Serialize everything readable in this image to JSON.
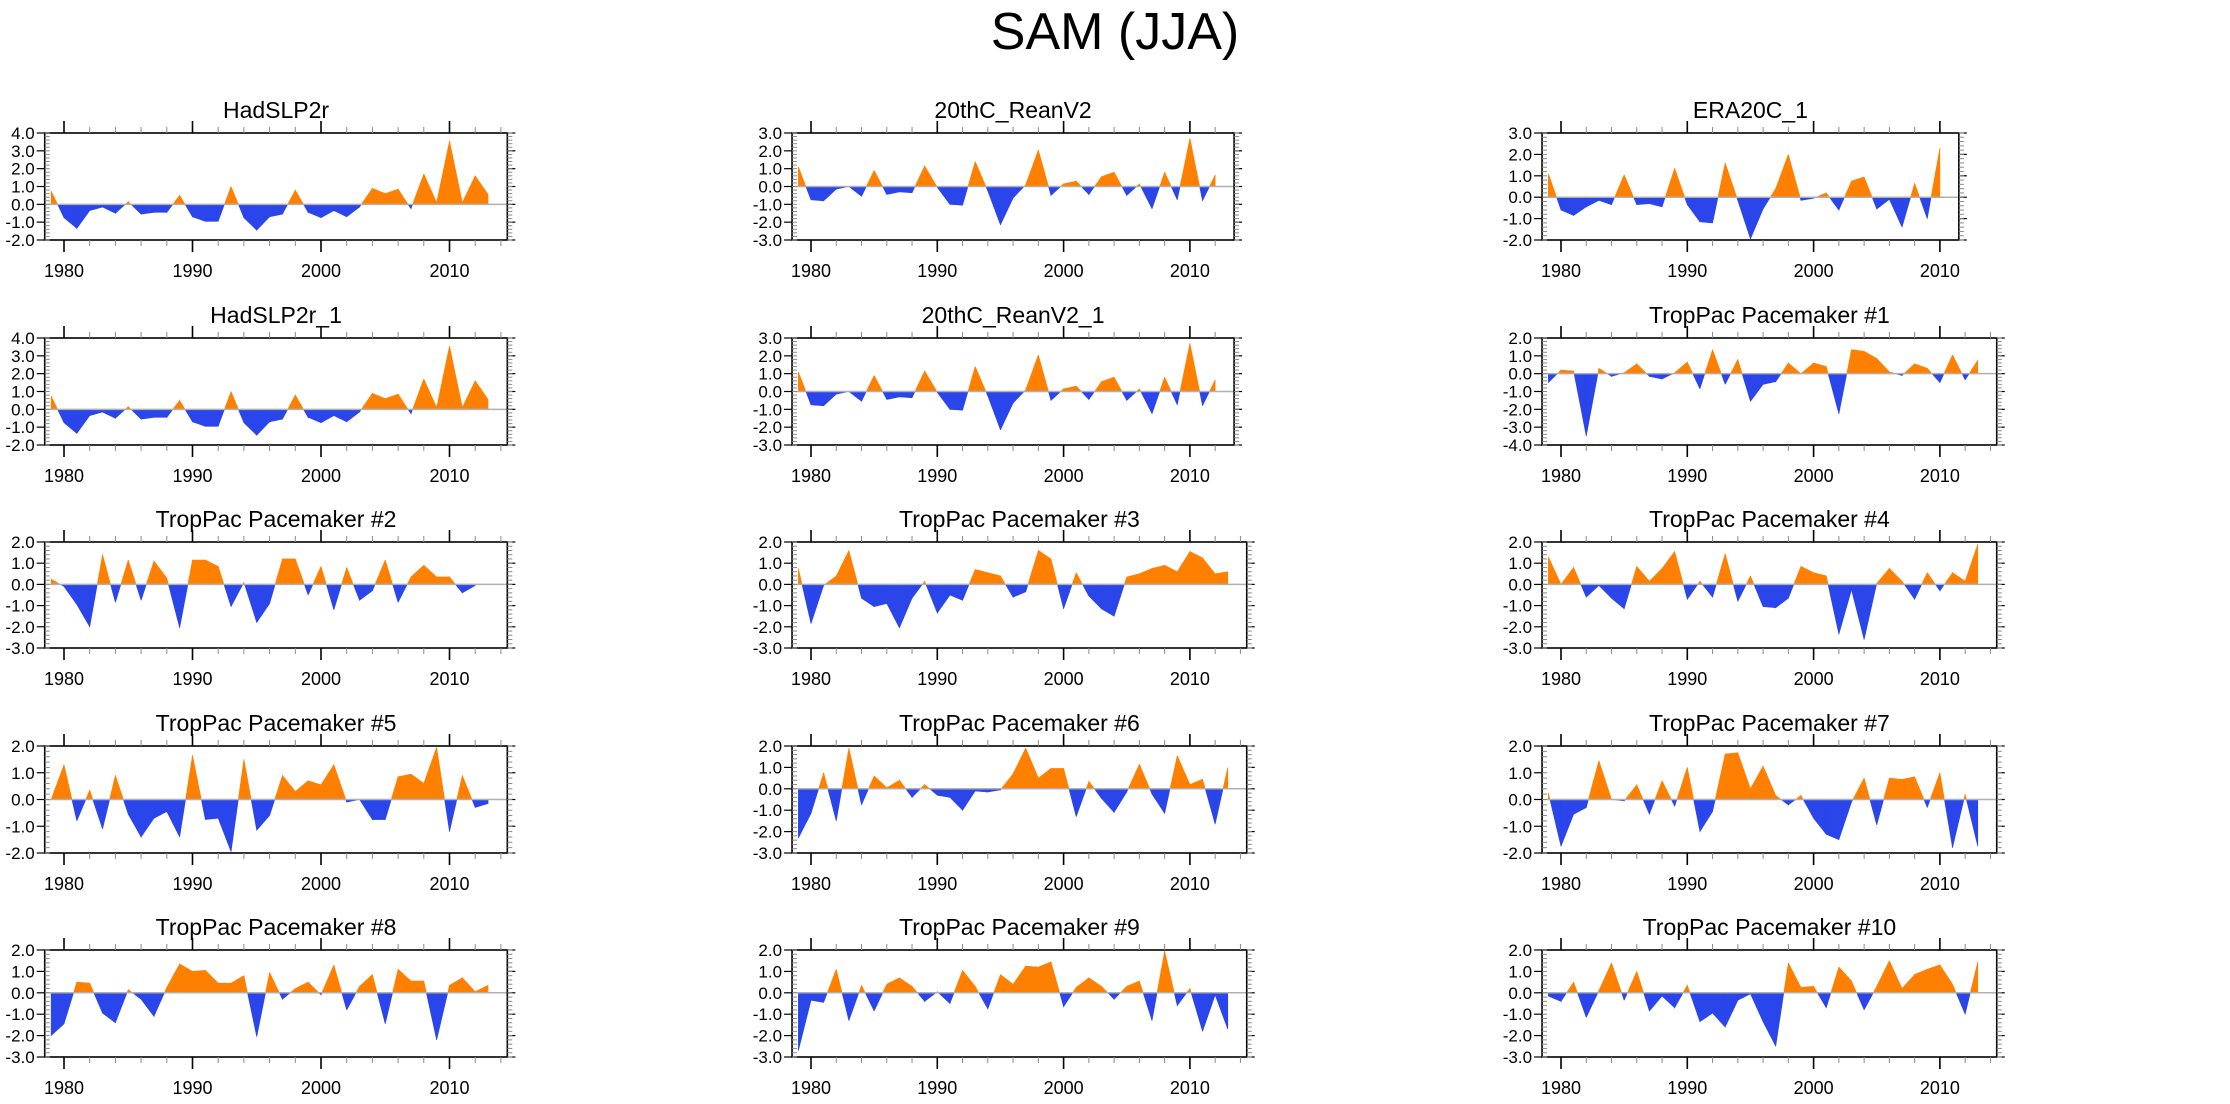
{
  "title": "SAM (JJA)",
  "colors": {
    "positive": "#ff8000",
    "negative": "#2a45ea",
    "zero_line": "#b0b0b0",
    "axis": "#000000"
  },
  "chart_data": [
    {
      "type": "area",
      "title": "HadSLP2r",
      "xlim": [
        1978.5,
        2014.5
      ],
      "ylim": [
        -2.0,
        4.0
      ],
      "yticks": [
        "4.0",
        "3.0",
        "2.0",
        "1.0",
        "0.0",
        "-1.0",
        "-2.0"
      ],
      "ytick_values": [
        4,
        3,
        2,
        1,
        0,
        -1,
        -2
      ],
      "xticks": [
        1980,
        1990,
        2000,
        2010
      ],
      "x_start": 1979,
      "values": [
        0.75,
        -0.75,
        -1.35,
        -0.35,
        -0.15,
        -0.5,
        0.15,
        -0.55,
        -0.45,
        -0.45,
        0.5,
        -0.7,
        -0.95,
        -0.95,
        1.0,
        -0.75,
        -1.45,
        -0.7,
        -0.55,
        0.8,
        -0.45,
        -0.75,
        -0.35,
        -0.7,
        -0.15,
        0.9,
        0.6,
        0.85,
        -0.25,
        1.7,
        0.1,
        3.55,
        0.1,
        1.6,
        0.55
      ]
    },
    {
      "type": "area",
      "title": "20thC_ReanV2",
      "xlim": [
        1978.5,
        2013.5
      ],
      "ylim": [
        -3.0,
        3.0
      ],
      "yticks": [
        "3.0",
        "2.0",
        "1.0",
        "0.0",
        "-1.0",
        "-2.0",
        "-3.0"
      ],
      "ytick_values": [
        3,
        2,
        1,
        0,
        -1,
        -2,
        -3
      ],
      "xticks": [
        1980,
        1990,
        2000,
        2010
      ],
      "x_start": 1979,
      "values": [
        1.1,
        -0.75,
        -0.8,
        -0.15,
        0.0,
        -0.55,
        0.9,
        -0.45,
        -0.3,
        -0.35,
        1.15,
        -0.05,
        -1.0,
        -1.05,
        1.4,
        -0.25,
        -2.15,
        -0.65,
        0.1,
        2.05,
        -0.5,
        0.15,
        0.3,
        -0.45,
        0.55,
        0.8,
        -0.5,
        0.15,
        -1.25,
        0.8,
        -0.75,
        2.7,
        -0.8,
        0.65
      ]
    },
    {
      "type": "area",
      "title": "ERA20C_1",
      "xlim": [
        1978.5,
        2011.5
      ],
      "ylim": [
        -2.0,
        3.0
      ],
      "yticks": [
        "3.0",
        "2.0",
        "1.0",
        "0.0",
        "-1.0",
        "-2.0"
      ],
      "ytick_values": [
        3,
        2,
        1,
        0,
        -1,
        -2
      ],
      "xticks": [
        1980,
        1990,
        2000,
        2010
      ],
      "x_start": 1979,
      "values": [
        1.1,
        -0.6,
        -0.85,
        -0.45,
        -0.15,
        -0.35,
        1.05,
        -0.35,
        -0.3,
        -0.45,
        1.35,
        -0.35,
        -1.15,
        -1.2,
        1.6,
        -0.15,
        -1.95,
        -0.55,
        0.4,
        2.0,
        -0.15,
        -0.05,
        0.2,
        -0.6,
        0.75,
        0.95,
        -0.55,
        -0.1,
        -1.4,
        0.65,
        -1.0,
        2.3
      ]
    },
    {
      "type": "area",
      "title": "HadSLP2r_1",
      "xlim": [
        1978.5,
        2014.5
      ],
      "ylim": [
        -2.0,
        4.0
      ],
      "yticks": [
        "4.0",
        "3.0",
        "2.0",
        "1.0",
        "0.0",
        "-1.0",
        "-2.0"
      ],
      "ytick_values": [
        4,
        3,
        2,
        1,
        0,
        -1,
        -2
      ],
      "xticks": [
        1980,
        1990,
        2000,
        2010
      ],
      "x_start": 1979,
      "values": [
        0.75,
        -0.75,
        -1.35,
        -0.35,
        -0.15,
        -0.5,
        0.15,
        -0.55,
        -0.45,
        -0.45,
        0.5,
        -0.7,
        -0.95,
        -0.95,
        1.0,
        -0.75,
        -1.45,
        -0.7,
        -0.55,
        0.8,
        -0.45,
        -0.75,
        -0.35,
        -0.7,
        -0.15,
        0.9,
        0.6,
        0.85,
        -0.25,
        1.7,
        0.1,
        3.55,
        0.1,
        1.6,
        0.55
      ]
    },
    {
      "type": "area",
      "title": "20thC_ReanV2_1",
      "xlim": [
        1978.5,
        2013.5
      ],
      "ylim": [
        -3.0,
        3.0
      ],
      "yticks": [
        "3.0",
        "2.0",
        "1.0",
        "0.0",
        "-1.0",
        "-2.0",
        "-3.0"
      ],
      "ytick_values": [
        3,
        2,
        1,
        0,
        -1,
        -2,
        -3
      ],
      "xticks": [
        1980,
        1990,
        2000,
        2010
      ],
      "x_start": 1979,
      "values": [
        1.1,
        -0.75,
        -0.8,
        -0.15,
        0.0,
        -0.55,
        0.9,
        -0.45,
        -0.3,
        -0.35,
        1.15,
        -0.05,
        -1.0,
        -1.05,
        1.4,
        -0.25,
        -2.15,
        -0.65,
        0.1,
        2.05,
        -0.5,
        0.15,
        0.3,
        -0.45,
        0.55,
        0.8,
        -0.5,
        0.15,
        -1.25,
        0.8,
        -0.75,
        2.7,
        -0.8,
        0.65
      ]
    },
    {
      "type": "area",
      "title": "TropPac Pacemaker #1",
      "xlim": [
        1978.5,
        2014.5
      ],
      "ylim": [
        -4.0,
        2.0
      ],
      "yticks": [
        "2.0",
        "1.0",
        "0.0",
        "-1.0",
        "-2.0",
        "-3.0",
        "-4.0"
      ],
      "ytick_values": [
        2,
        1,
        0,
        -1,
        -2,
        -3,
        -4
      ],
      "xticks": [
        1980,
        1990,
        2000,
        2010
      ],
      "x_start": 1979,
      "values": [
        -0.5,
        0.2,
        0.15,
        -3.5,
        0.3,
        -0.15,
        0.05,
        0.55,
        -0.15,
        -0.3,
        0.05,
        0.65,
        -0.85,
        1.35,
        -0.6,
        0.8,
        -1.55,
        -0.6,
        -0.45,
        0.6,
        0.0,
        0.6,
        0.4,
        -2.25,
        1.35,
        1.25,
        0.85,
        0.1,
        -0.1,
        0.55,
        0.3,
        -0.5,
        1.05,
        -0.35,
        0.75
      ]
    },
    {
      "type": "area",
      "title": "TropPac Pacemaker #2",
      "xlim": [
        1978.5,
        2014.5
      ],
      "ylim": [
        -3.0,
        2.0
      ],
      "yticks": [
        "2.0",
        "1.0",
        "0.0",
        "-1.0",
        "-2.0",
        "-3.0"
      ],
      "ytick_values": [
        2,
        1,
        0,
        -1,
        -2,
        -3
      ],
      "xticks": [
        1980,
        1990,
        2000,
        2010
      ],
      "x_start": 1979,
      "values": [
        0.25,
        -0.1,
        -0.95,
        -2.0,
        1.4,
        -0.85,
        1.15,
        -0.75,
        1.1,
        0.3,
        -2.05,
        1.15,
        1.15,
        0.85,
        -1.05,
        0.1,
        -1.8,
        -0.9,
        1.2,
        1.2,
        -0.5,
        0.85,
        -1.2,
        0.8,
        -0.75,
        -0.3,
        1.15,
        -0.85,
        0.35,
        0.9,
        0.35,
        0.35,
        -0.4,
        -0.05
      ]
    },
    {
      "type": "area",
      "title": "TropPac Pacemaker #3",
      "xlim": [
        1978.5,
        2014.5
      ],
      "ylim": [
        -3.0,
        2.0
      ],
      "yticks": [
        "2.0",
        "1.0",
        "0.0",
        "-1.0",
        "-2.0",
        "-3.0"
      ],
      "ytick_values": [
        2,
        1,
        0,
        -1,
        -2,
        -3
      ],
      "xticks": [
        1980,
        1990,
        2000,
        2010
      ],
      "x_start": 1979,
      "values": [
        0.75,
        -1.85,
        -0.05,
        0.4,
        1.6,
        -0.65,
        -1.05,
        -0.9,
        -2.05,
        -0.65,
        0.15,
        -1.35,
        -0.5,
        -0.75,
        0.7,
        0.55,
        0.4,
        -0.6,
        -0.35,
        1.6,
        1.2,
        -1.15,
        0.55,
        -0.55,
        -1.15,
        -1.5,
        0.35,
        0.5,
        0.75,
        0.9,
        0.6,
        1.55,
        1.25,
        0.5,
        0.6
      ]
    },
    {
      "type": "area",
      "title": "TropPac Pacemaker #4",
      "xlim": [
        1978.5,
        2014.5
      ],
      "ylim": [
        -3.0,
        2.0
      ],
      "yticks": [
        "2.0",
        "1.0",
        "0.0",
        "-1.0",
        "-2.0",
        "-3.0"
      ],
      "ytick_values": [
        2,
        1,
        0,
        -1,
        -2,
        -3
      ],
      "xticks": [
        1980,
        1990,
        2000,
        2010
      ],
      "x_start": 1979,
      "values": [
        1.3,
        0.0,
        0.8,
        -0.6,
        -0.05,
        -0.65,
        -1.15,
        0.85,
        0.15,
        0.75,
        1.55,
        -0.7,
        0.15,
        -0.6,
        1.45,
        -0.8,
        0.4,
        -1.05,
        -1.1,
        -0.65,
        0.85,
        0.55,
        0.4,
        -2.35,
        -0.25,
        -2.6,
        0.05,
        0.75,
        0.15,
        -0.7,
        0.55,
        -0.3,
        0.55,
        0.15,
        1.9
      ]
    },
    {
      "type": "area",
      "title": "TropPac Pacemaker #5",
      "xlim": [
        1978.5,
        2014.5
      ],
      "ylim": [
        -2.0,
        2.0
      ],
      "yticks": [
        "2.0",
        "1.0",
        "0.0",
        "-1.0",
        "-2.0"
      ],
      "ytick_values": [
        2,
        1,
        0,
        -1,
        -2
      ],
      "xticks": [
        1980,
        1990,
        2000,
        2010
      ],
      "x_start": 1979,
      "values": [
        0.0,
        1.3,
        -0.8,
        0.35,
        -1.1,
        0.9,
        -0.55,
        -1.4,
        -0.7,
        -0.45,
        -1.4,
        1.65,
        -0.75,
        -0.7,
        -1.95,
        1.5,
        -1.15,
        -0.6,
        0.9,
        0.3,
        0.7,
        0.55,
        1.3,
        -0.1,
        0.0,
        -0.75,
        -0.75,
        0.85,
        0.95,
        0.6,
        1.95,
        -1.2,
        0.9,
        -0.3,
        -0.15
      ]
    },
    {
      "type": "area",
      "title": "TropPac Pacemaker #6",
      "xlim": [
        1978.5,
        2014.5
      ],
      "ylim": [
        -3.0,
        2.0
      ],
      "yticks": [
        "2.0",
        "1.0",
        "0.0",
        "-1.0",
        "-2.0",
        "-3.0"
      ],
      "ytick_values": [
        2,
        1,
        0,
        -1,
        -2,
        -3
      ],
      "xticks": [
        1980,
        1990,
        2000,
        2010
      ],
      "x_start": 1979,
      "values": [
        -2.3,
        -1.15,
        0.75,
        -1.5,
        1.9,
        -0.75,
        0.6,
        0.05,
        0.4,
        -0.4,
        0.2,
        -0.3,
        -0.4,
        -1.0,
        -0.1,
        -0.15,
        -0.05,
        0.7,
        1.9,
        0.5,
        0.95,
        0.95,
        -1.3,
        0.35,
        -0.45,
        -1.1,
        -0.15,
        1.15,
        -0.25,
        -1.15,
        1.55,
        0.2,
        0.45,
        -1.65,
        1.0
      ]
    },
    {
      "type": "area",
      "title": "TropPac Pacemaker #7",
      "xlim": [
        1978.5,
        2014.5
      ],
      "ylim": [
        -2.0,
        2.0
      ],
      "yticks": [
        "2.0",
        "1.0",
        "0.0",
        "-1.0",
        "-2.0"
      ],
      "ytick_values": [
        2,
        1,
        0,
        -1,
        -2
      ],
      "xticks": [
        1980,
        1990,
        2000,
        2010
      ],
      "x_start": 1979,
      "values": [
        0.25,
        -1.75,
        -0.55,
        -0.3,
        1.45,
        0.0,
        -0.05,
        0.55,
        -0.55,
        0.7,
        -0.25,
        1.2,
        -1.2,
        -0.45,
        1.7,
        1.75,
        0.4,
        1.25,
        0.15,
        -0.2,
        0.15,
        -0.7,
        -1.3,
        -1.5,
        -0.1,
        0.8,
        -0.95,
        0.8,
        0.75,
        0.85,
        -0.3,
        1.0,
        -1.8,
        0.2,
        -1.75
      ]
    },
    {
      "type": "area",
      "title": "TropPac Pacemaker #8",
      "xlim": [
        1978.5,
        2014.5
      ],
      "ylim": [
        -3.0,
        2.0
      ],
      "yticks": [
        "2.0",
        "1.0",
        "0.0",
        "-1.0",
        "-2.0",
        "-3.0"
      ],
      "ytick_values": [
        2,
        1,
        0,
        -1,
        -2,
        -3
      ],
      "xticks": [
        1980,
        1990,
        2000,
        2010
      ],
      "x_start": 1979,
      "values": [
        -2.0,
        -1.45,
        0.5,
        0.45,
        -0.95,
        -1.4,
        0.15,
        -0.3,
        -1.1,
        0.25,
        1.35,
        1.0,
        1.05,
        0.45,
        0.45,
        0.8,
        -2.05,
        0.95,
        -0.3,
        0.2,
        0.5,
        -0.1,
        1.3,
        -0.8,
        0.3,
        0.85,
        -1.45,
        1.1,
        0.55,
        0.55,
        -2.2,
        0.35,
        0.7,
        0.05,
        0.35
      ]
    },
    {
      "type": "area",
      "title": "TropPac Pacemaker #9",
      "xlim": [
        1978.5,
        2014.5
      ],
      "ylim": [
        -3.0,
        2.0
      ],
      "yticks": [
        "2.0",
        "1.0",
        "0.0",
        "-1.0",
        "-2.0",
        "-3.0"
      ],
      "ytick_values": [
        2,
        1,
        0,
        -1,
        -2,
        -3
      ],
      "xticks": [
        1980,
        1990,
        2000,
        2010
      ],
      "x_start": 1979,
      "values": [
        -2.7,
        -0.35,
        -0.45,
        1.1,
        -1.3,
        0.35,
        -0.85,
        0.4,
        0.7,
        0.3,
        -0.4,
        0.05,
        -0.5,
        1.05,
        0.3,
        -0.75,
        0.85,
        0.4,
        1.25,
        1.2,
        1.45,
        -0.65,
        0.25,
        0.7,
        0.3,
        -0.3,
        0.3,
        0.55,
        -1.3,
        1.95,
        -0.6,
        0.2,
        -1.8,
        -0.1,
        -1.7
      ]
    },
    {
      "type": "area",
      "title": "TropPac Pacemaker #10",
      "xlim": [
        1978.5,
        2014.5
      ],
      "ylim": [
        -3.0,
        2.0
      ],
      "yticks": [
        "2.0",
        "1.0",
        "0.0",
        "-1.0",
        "-2.0",
        "-3.0"
      ],
      "ytick_values": [
        2,
        1,
        0,
        -1,
        -2,
        -3
      ],
      "xticks": [
        1980,
        1990,
        2000,
        2010
      ],
      "x_start": 1979,
      "values": [
        -0.15,
        -0.4,
        0.5,
        -1.15,
        0.1,
        1.4,
        -0.35,
        1.0,
        -0.85,
        -0.15,
        -0.7,
        0.35,
        -1.35,
        -0.95,
        -1.6,
        -0.35,
        -0.05,
        -1.35,
        -2.5,
        1.4,
        0.25,
        0.3,
        -0.7,
        1.2,
        0.55,
        -0.8,
        0.3,
        1.5,
        0.2,
        0.85,
        1.1,
        1.3,
        0.4,
        -1.0,
        1.45
      ]
    }
  ]
}
